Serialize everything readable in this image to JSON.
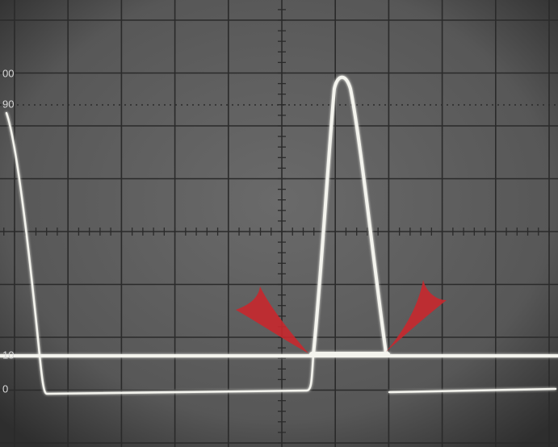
{
  "scale_labels": [
    "00",
    "90",
    "10",
    "0"
  ]
}
